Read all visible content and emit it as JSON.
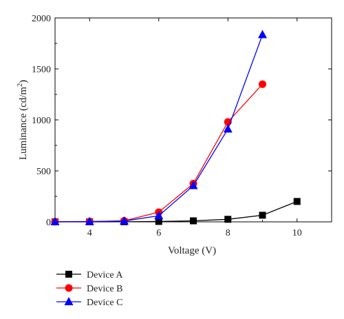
{
  "chart_data": {
    "type": "line",
    "xlabel": "Voltage (V)",
    "ylabel_main": "Luminance (cd/m",
    "ylabel_sup": "2",
    "ylabel_end": ")",
    "xlim": [
      3,
      11
    ],
    "ylim": [
      0,
      2000
    ],
    "xticks": [
      4,
      6,
      8,
      10
    ],
    "yticks": [
      0,
      500,
      1000,
      1500,
      2000
    ],
    "grid": false,
    "legend_position": "bottom-left",
    "series": [
      {
        "name": "Device A",
        "color": "#000000",
        "marker": "square",
        "x": [
          3,
          4,
          5,
          6,
          7,
          8,
          9,
          10
        ],
        "y": [
          0,
          0,
          1,
          4,
          10,
          25,
          65,
          200
        ]
      },
      {
        "name": "Device B",
        "color": "#ff0000",
        "marker": "circle",
        "x": [
          3,
          4,
          5,
          6,
          7,
          8,
          9
        ],
        "y": [
          2,
          3,
          10,
          95,
          375,
          980,
          1350
        ]
      },
      {
        "name": "Device C",
        "color": "#0000ff",
        "marker": "triangle",
        "x": [
          3,
          4,
          5,
          6,
          7,
          8,
          9
        ],
        "y": [
          1,
          2,
          8,
          60,
          355,
          910,
          1835
        ]
      }
    ]
  }
}
